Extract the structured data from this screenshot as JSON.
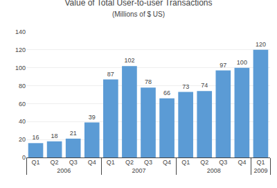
{
  "chart_data": {
    "type": "bar",
    "title": "Value of Total User-to-user Transactions",
    "subtitle": "(Millions of $ US)",
    "categories": [
      [
        "2006",
        "Q1"
      ],
      [
        "2006",
        "Q2"
      ],
      [
        "2006",
        "Q3"
      ],
      [
        "2006",
        "Q4"
      ],
      [
        "2007",
        "Q1"
      ],
      [
        "2007",
        "Q2"
      ],
      [
        "2007",
        "Q3"
      ],
      [
        "2007",
        "Q4"
      ],
      [
        "2008",
        "Q1"
      ],
      [
        "2008",
        "Q2"
      ],
      [
        "2008",
        "Q3"
      ],
      [
        "2008",
        "Q4"
      ],
      [
        "2009",
        "Q1"
      ]
    ],
    "values": [
      16,
      18,
      21,
      39,
      87,
      102,
      78,
      66,
      73,
      74,
      97,
      100,
      120
    ],
    "color": "#5b9bd5",
    "ylim": [
      0,
      140
    ],
    "yticks": [
      0,
      20,
      40,
      60,
      80,
      100,
      120,
      140
    ],
    "grid": true,
    "data_labels": true
  }
}
